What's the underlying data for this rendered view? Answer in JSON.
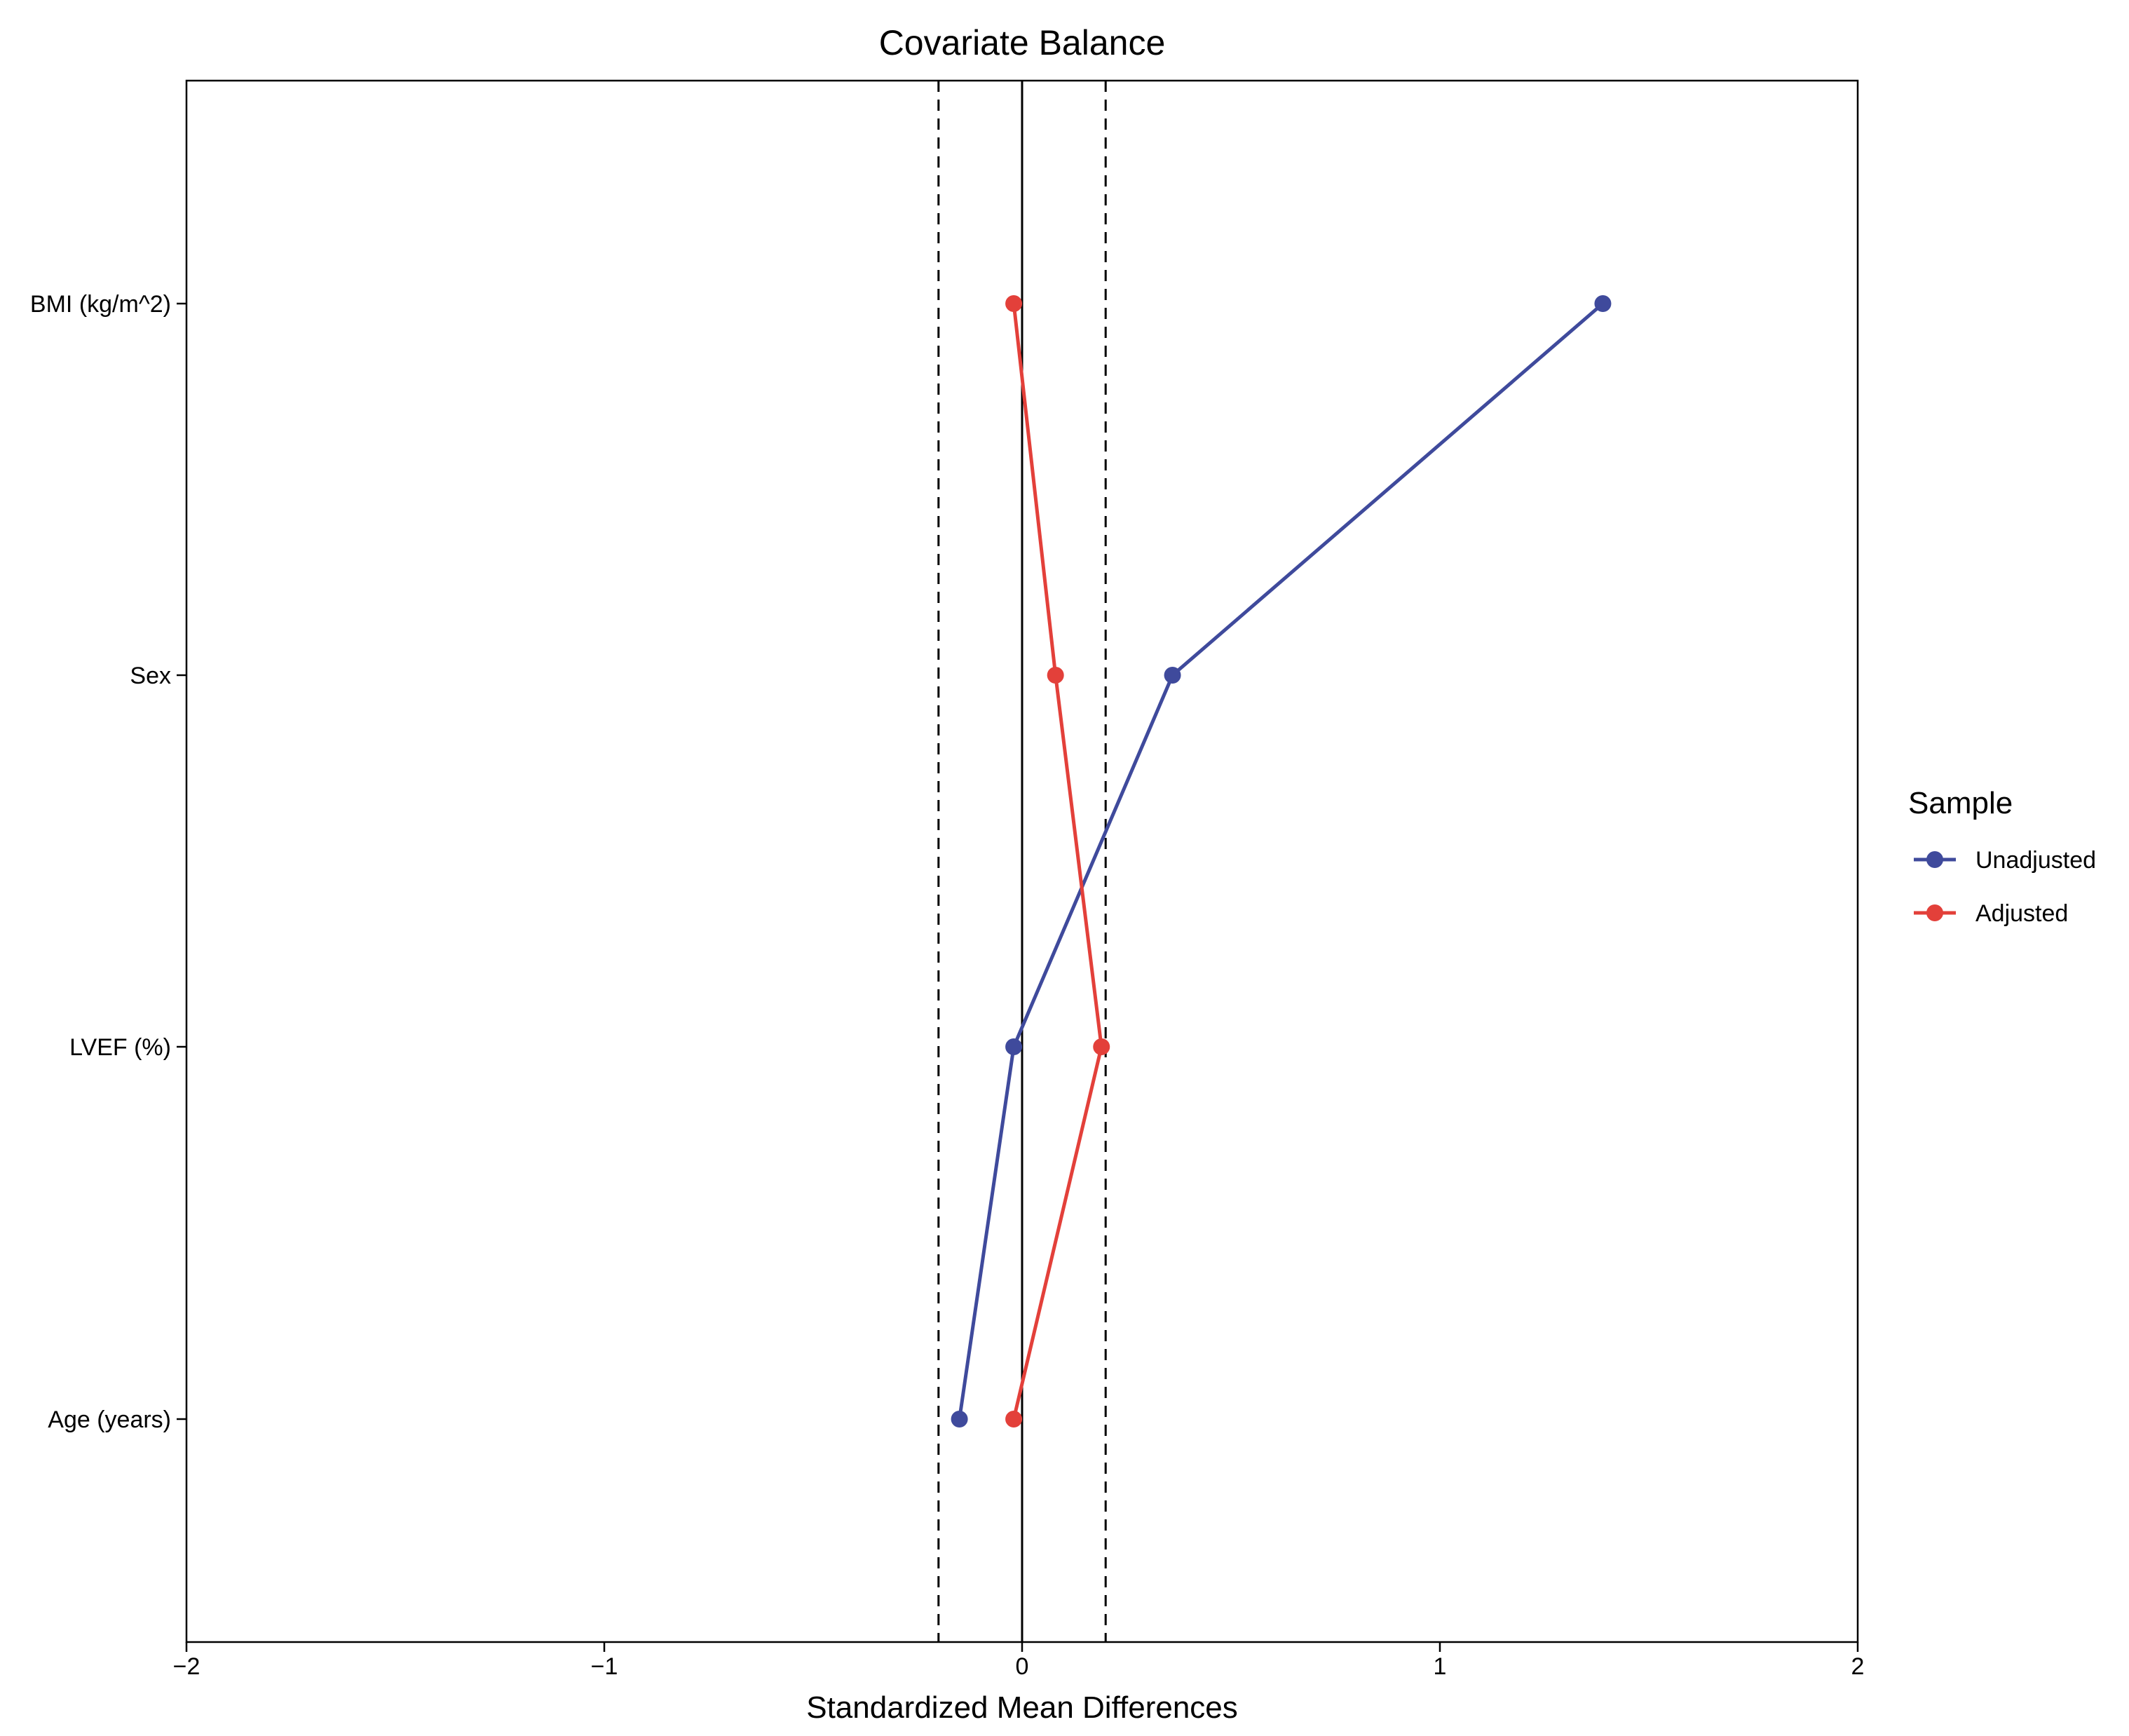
{
  "chart_data": {
    "type": "line",
    "title": "Covariate Balance",
    "xlabel": "Standardized Mean Differences",
    "ylabel": "",
    "xlim": [
      -2,
      2
    ],
    "x_ticks": [
      -2,
      -1,
      0,
      1,
      2
    ],
    "x_tick_labels": [
      "−2",
      "−1",
      "0",
      "1",
      "2"
    ],
    "categories": [
      "BMI (kg/m^2)",
      "Sex",
      "LVEF (%)",
      "Age (years)"
    ],
    "series": [
      {
        "name": "Unadjusted",
        "color": "#3F4A9C",
        "values": [
          1.39,
          0.36,
          -0.02,
          -0.15
        ]
      },
      {
        "name": "Adjusted",
        "color": "#E3403A",
        "values": [
          -0.02,
          0.08,
          0.19,
          -0.02
        ]
      }
    ],
    "reference_lines": {
      "solid": 0,
      "dashed": [
        -0.2,
        0.2
      ]
    },
    "legend": {
      "title": "Sample",
      "position": "right"
    },
    "grid": false
  }
}
